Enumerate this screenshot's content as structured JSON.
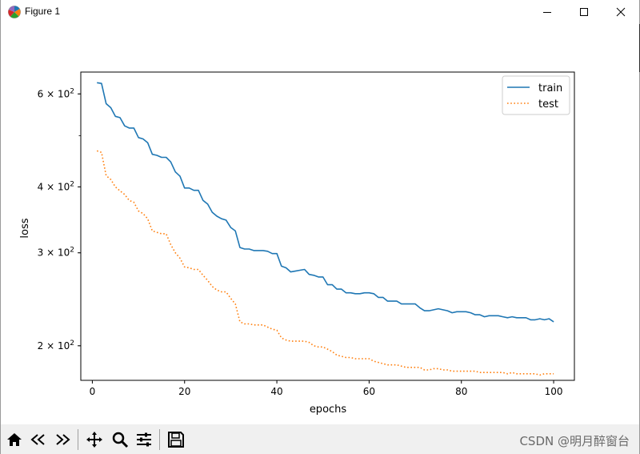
{
  "window": {
    "title": "Figure 1",
    "icons": [
      "matplotlib-logo-icon",
      "minimize-icon",
      "maximize-icon",
      "close-icon"
    ]
  },
  "toolbar": {
    "buttons": [
      "home-icon",
      "back-icon",
      "forward-icon",
      "pan-icon",
      "zoom-icon",
      "configure-subplots-icon",
      "save-icon"
    ]
  },
  "watermark": "CSDN @明月醉窗台",
  "chart_data": {
    "type": "line",
    "title": "",
    "xlabel": "epochs",
    "ylabel": "loss",
    "xlim": [
      -2.5,
      104.5
    ],
    "ylim": [
      172,
      660
    ],
    "yscale": "log",
    "xticks": [
      0,
      20,
      40,
      60,
      80,
      100
    ],
    "xtick_labels": [
      "0",
      "20",
      "40",
      "60",
      "80",
      "100"
    ],
    "yticks": [
      200,
      300,
      400,
      600
    ],
    "ytick_labels": [
      "2 × 10²",
      "3 × 10²",
      "4 × 10²",
      "6 × 10²"
    ],
    "grid": false,
    "legend_position": "top-right",
    "series": [
      {
        "name": "train",
        "color": "#1f77b4",
        "linestyle": "solid",
        "x": [
          1,
          2,
          3,
          4,
          5,
          6,
          7,
          8,
          9,
          10,
          11,
          12,
          13,
          14,
          15,
          16,
          17,
          18,
          19,
          20,
          21,
          22,
          23,
          24,
          25,
          26,
          27,
          28,
          29,
          30,
          31,
          32,
          33,
          34,
          35,
          36,
          37,
          38,
          39,
          40,
          41,
          42,
          43,
          44,
          45,
          46,
          47,
          48,
          49,
          50,
          51,
          52,
          53,
          54,
          55,
          56,
          57,
          58,
          59,
          60,
          61,
          62,
          63,
          64,
          65,
          66,
          67,
          68,
          69,
          70,
          71,
          72,
          73,
          74,
          75,
          76,
          77,
          78,
          79,
          80,
          81,
          82,
          83,
          84,
          85,
          86,
          87,
          88,
          89,
          90,
          91,
          92,
          93,
          94,
          95,
          96,
          97,
          98,
          99,
          100
        ],
        "y": [
          630,
          628,
          575,
          565,
          544,
          541,
          522,
          517,
          517,
          496,
          493,
          485,
          461,
          459,
          455,
          455,
          446,
          427,
          419,
          398,
          398,
          394,
          394,
          377,
          371,
          358,
          352,
          348,
          346,
          335,
          330,
          307,
          305,
          305,
          303,
          303,
          303,
          302,
          299,
          299,
          283,
          281,
          276,
          277,
          278,
          279,
          273,
          272,
          270,
          270,
          261,
          261,
          256,
          256,
          252,
          252,
          251,
          251,
          252,
          252,
          251,
          247,
          247,
          243,
          243,
          243,
          240,
          240,
          240,
          240,
          236,
          233,
          233,
          234,
          235,
          234,
          233,
          231,
          232,
          232,
          232,
          231,
          229,
          229,
          227,
          228,
          228,
          228,
          227,
          226,
          227,
          226,
          226,
          226,
          224,
          224,
          225,
          224,
          225,
          222
        ],
        "style": "solid"
      },
      {
        "name": "test",
        "color": "#ff7f0e",
        "linestyle": "dotted",
        "x": [
          1,
          2,
          3,
          4,
          5,
          6,
          7,
          8,
          9,
          10,
          11,
          12,
          13,
          14,
          15,
          16,
          17,
          18,
          19,
          20,
          21,
          22,
          23,
          24,
          25,
          26,
          27,
          28,
          29,
          30,
          31,
          32,
          33,
          34,
          35,
          36,
          37,
          38,
          39,
          40,
          41,
          42,
          43,
          44,
          45,
          46,
          47,
          48,
          49,
          50,
          51,
          52,
          53,
          54,
          55,
          56,
          57,
          58,
          59,
          60,
          61,
          62,
          63,
          64,
          65,
          66,
          67,
          68,
          69,
          70,
          71,
          72,
          73,
          74,
          75,
          76,
          77,
          78,
          79,
          80,
          81,
          82,
          83,
          84,
          85,
          86,
          87,
          88,
          89,
          90,
          91,
          92,
          93,
          94,
          95,
          96,
          97,
          98,
          99,
          100
        ],
        "y": [
          468,
          465,
          420,
          413,
          400,
          393,
          387,
          377,
          374,
          360,
          356,
          348,
          330,
          328,
          326,
          326,
          311,
          300,
          293,
          282,
          281,
          279,
          279,
          272,
          266,
          259,
          255,
          253,
          253,
          246,
          240,
          222,
          220,
          220,
          219,
          219,
          219,
          217,
          215,
          214,
          207,
          205,
          204,
          204,
          204,
          204,
          203,
          200,
          199,
          199,
          197,
          195,
          192,
          191,
          190,
          190,
          189,
          189,
          189,
          189,
          187,
          186,
          185,
          184,
          184,
          184,
          183,
          182,
          182,
          182,
          182,
          180,
          180,
          181,
          181,
          180,
          180,
          179,
          179,
          179,
          179,
          179,
          179,
          178,
          178,
          178,
          178,
          178,
          178,
          177,
          178,
          177,
          177,
          177,
          177,
          177,
          176,
          177,
          177,
          177
        ],
        "style": "dotted"
      }
    ]
  }
}
